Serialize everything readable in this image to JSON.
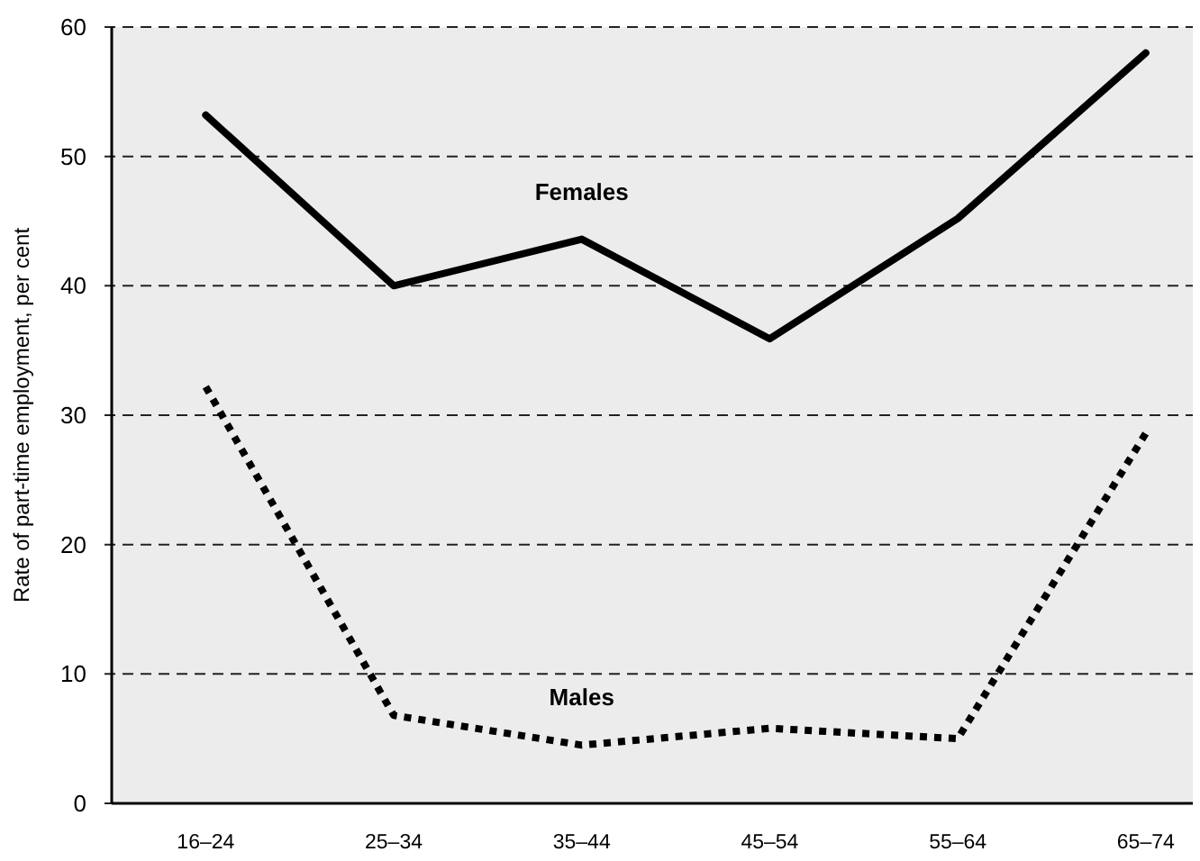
{
  "chart_data": {
    "type": "line",
    "ylabel": "Rate of part-time employment, per cent",
    "categories": [
      "16–24",
      "25–34",
      "35–44",
      "45–54",
      "55–64",
      "65–74"
    ],
    "ylim": [
      0,
      60
    ],
    "yticks": [
      0,
      10,
      20,
      30,
      40,
      50,
      60
    ],
    "grid": "y",
    "series": [
      {
        "name": "Females",
        "color": "#000000",
        "line_style": "solid",
        "values": [
          53.2,
          40.0,
          43.6,
          35.9,
          45.2,
          58.0
        ]
      },
      {
        "name": "Males",
        "color": "#000000",
        "line_style": "dotted",
        "values": [
          32.2,
          6.8,
          4.5,
          5.8,
          5.0,
          28.6
        ]
      }
    ]
  }
}
